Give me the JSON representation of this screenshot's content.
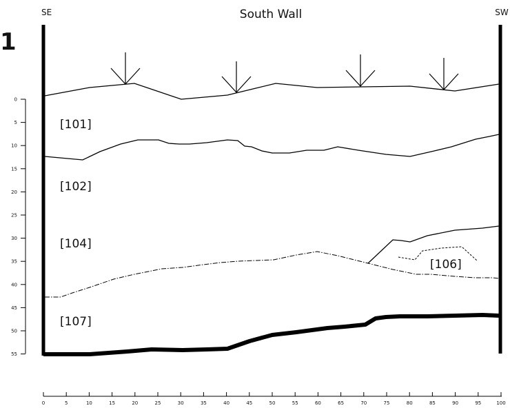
{
  "figure_number": "1",
  "title": "South Wall",
  "corner_left": "SE",
  "corner_right": "SW",
  "layers": [
    {
      "id": "101",
      "label": "[101]"
    },
    {
      "id": "102",
      "label": "[102]"
    },
    {
      "id": "104",
      "label": "[104]"
    },
    {
      "id": "106",
      "label": "[106]"
    },
    {
      "id": "107",
      "label": "[107]"
    }
  ],
  "depth_ticks": [
    "0",
    "5",
    "10",
    "15",
    "20",
    "25",
    "30",
    "35",
    "40",
    "45",
    "50",
    "55"
  ],
  "length_ticks": [
    "0",
    "5",
    "10",
    "15",
    "20",
    "25",
    "30",
    "35",
    "40",
    "45",
    "50",
    "55",
    "60",
    "65",
    "70",
    "75",
    "80",
    "85",
    "90",
    "95",
    "100"
  ],
  "sample_arrows": 4
}
